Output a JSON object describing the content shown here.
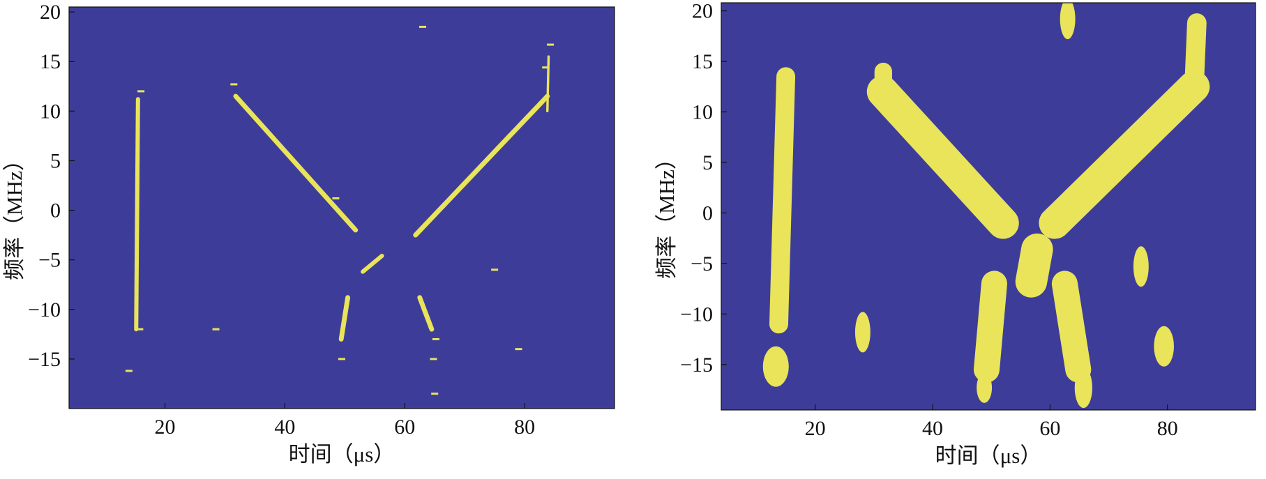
{
  "colors": {
    "background": "#3d3d99",
    "blob": "#e9e45a",
    "axis": "#111111"
  },
  "chart_data": [
    {
      "type": "heatmap",
      "title": "",
      "xlabel": "时间（μs）",
      "ylabel": "频率（MHz）",
      "xlim": [
        4,
        95
      ],
      "ylim": [
        -20,
        20.5
      ],
      "xticks": [
        20,
        40,
        60,
        80
      ],
      "yticks": [
        -15,
        -10,
        -5,
        0,
        5,
        10,
        15,
        20
      ],
      "grid": false,
      "legend": "none",
      "strokes": [
        {
          "x1": 15.5,
          "y1": 11.2,
          "x2": 15.2,
          "y2": -12.0,
          "width": 0.7
        },
        {
          "x1": 31.8,
          "y1": 11.5,
          "x2": 51.8,
          "y2": -2.0,
          "width": 0.8
        },
        {
          "x1": 61.8,
          "y1": -2.5,
          "x2": 83.8,
          "y2": 11.5,
          "width": 0.8
        },
        {
          "x1": 83.8,
          "y1": 10.0,
          "x2": 84.0,
          "y2": 15.5,
          "width": 0.4
        },
        {
          "x1": 53.0,
          "y1": -6.2,
          "x2": 56.2,
          "y2": -4.6,
          "width": 0.7
        },
        {
          "x1": 50.5,
          "y1": -8.8,
          "x2": 49.4,
          "y2": -13.0,
          "width": 0.8
        },
        {
          "x1": 62.5,
          "y1": -8.8,
          "x2": 64.5,
          "y2": -12.0,
          "width": 0.8
        }
      ],
      "specks": [
        {
          "x": 16.0,
          "y": 12.0
        },
        {
          "x": 15.8,
          "y": -12.0
        },
        {
          "x": 14.0,
          "y": -16.2
        },
        {
          "x": 28.5,
          "y": -12.0
        },
        {
          "x": 31.5,
          "y": 12.7
        },
        {
          "x": 48.5,
          "y": 1.2
        },
        {
          "x": 84.3,
          "y": 16.7
        },
        {
          "x": 83.5,
          "y": 14.4
        },
        {
          "x": 49.5,
          "y": -15.0
        },
        {
          "x": 65.2,
          "y": -13.0
        },
        {
          "x": 64.8,
          "y": -15.0
        },
        {
          "x": 65.0,
          "y": -18.5
        },
        {
          "x": 79.0,
          "y": -14.0
        },
        {
          "x": 75.0,
          "y": -6.0
        },
        {
          "x": 63.0,
          "y": 18.5
        }
      ]
    },
    {
      "type": "heatmap",
      "title": "",
      "xlabel": "时间（μs）",
      "ylabel": "频率（MHz）",
      "xlim": [
        4,
        95
      ],
      "ylim": [
        -19.5,
        20.8
      ],
      "xticks": [
        20,
        40,
        60,
        80
      ],
      "yticks": [
        -15,
        -10,
        -5,
        0,
        5,
        10,
        15,
        20
      ],
      "grid": false,
      "legend": "none",
      "strokes": [
        {
          "x1": 15.0,
          "y1": 13.5,
          "x2": 13.8,
          "y2": -11.0,
          "width": 3.2
        },
        {
          "x1": 31.5,
          "y1": 12.0,
          "x2": 52.0,
          "y2": -1.0,
          "width": 5.4
        },
        {
          "x1": 60.8,
          "y1": -1.0,
          "x2": 84.5,
          "y2": 12.5,
          "width": 5.4
        },
        {
          "x1": 84.5,
          "y1": 12.0,
          "x2": 85.0,
          "y2": 18.8,
          "width": 3.3
        },
        {
          "x1": 31.6,
          "y1": 14.0,
          "x2": 31.6,
          "y2": 12.0,
          "width": 3.0
        },
        {
          "x1": 50.5,
          "y1": -7.0,
          "x2": 49.2,
          "y2": -15.5,
          "width": 4.4
        },
        {
          "x1": 62.5,
          "y1": -7.0,
          "x2": 64.8,
          "y2": -15.5,
          "width": 4.4
        },
        {
          "x1": 56.8,
          "y1": -6.8,
          "x2": 57.8,
          "y2": -3.6,
          "width": 5.4
        }
      ],
      "blobs": [
        {
          "x": 13.3,
          "y": -15.2,
          "rx": 2.2,
          "ry": 2.0
        },
        {
          "x": 28.1,
          "y": -11.8,
          "rx": 1.3,
          "ry": 2.0
        },
        {
          "x": 63.0,
          "y": 19.2,
          "rx": 1.3,
          "ry": 2.0
        },
        {
          "x": 75.5,
          "y": -5.3,
          "rx": 1.3,
          "ry": 2.0
        },
        {
          "x": 79.4,
          "y": -13.2,
          "rx": 1.7,
          "ry": 2.0
        },
        {
          "x": 48.8,
          "y": -17.3,
          "rx": 1.3,
          "ry": 1.5
        },
        {
          "x": 65.7,
          "y": -17.3,
          "rx": 1.5,
          "ry": 2.0
        }
      ]
    }
  ]
}
